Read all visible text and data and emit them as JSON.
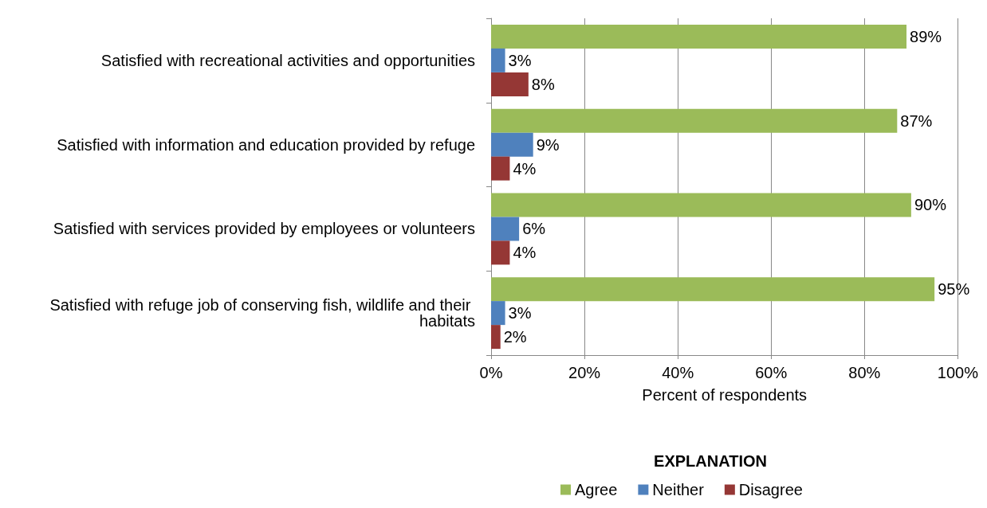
{
  "chart_data": {
    "type": "bar",
    "orientation": "horizontal",
    "xlabel": "Percent of respondents",
    "legend_title": "EXPLANATION",
    "legend": "bottom",
    "grid": "x",
    "categories": [
      "Satisfied with recreational activities and opportunities",
      "Satisfied with information and education provided by refuge",
      "Satisfied with services provided by employees or volunteers",
      "Satisfied with refuge job of conserving fish, wildlife and their habitats"
    ],
    "series": [
      {
        "name": "Agree",
        "color": "#9bbb59",
        "values": [
          89,
          87,
          90,
          95
        ],
        "value_labels": [
          "89%",
          "87%",
          "90%",
          "95%"
        ]
      },
      {
        "name": "Neither",
        "color": "#4f81bd",
        "values": [
          3,
          9,
          6,
          3
        ],
        "value_labels": [
          "3%",
          "9%",
          "6%",
          "3%"
        ]
      },
      {
        "name": "Disagree",
        "color": "#953735",
        "values": [
          8,
          4,
          4,
          2
        ],
        "value_labels": [
          "8%",
          "4%",
          "4%",
          "2%"
        ]
      }
    ],
    "xlim": [
      0,
      100
    ],
    "xticks": [
      {
        "value": 0,
        "label": "0%"
      },
      {
        "value": 20,
        "label": "20%"
      },
      {
        "value": 40,
        "label": "40%"
      },
      {
        "value": 60,
        "label": "60%"
      },
      {
        "value": 80,
        "label": "80%"
      },
      {
        "value": 100,
        "label": "100%"
      }
    ]
  }
}
